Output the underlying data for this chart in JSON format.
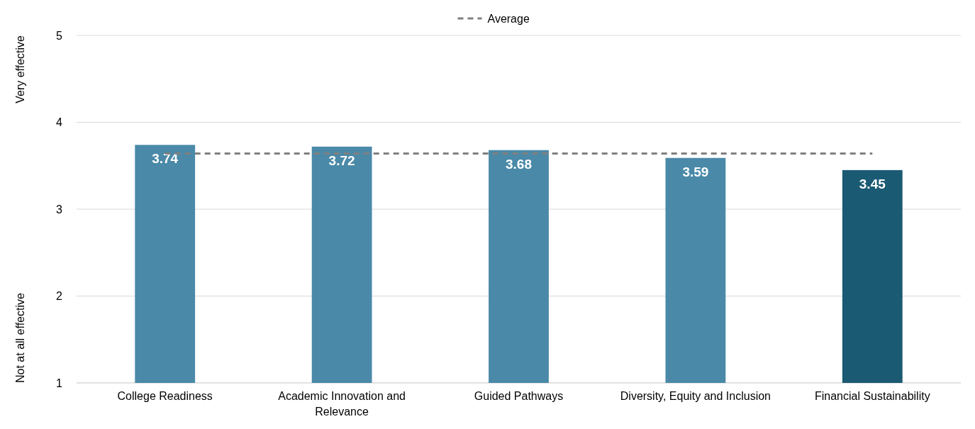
{
  "chart_data": {
    "type": "bar",
    "categories": [
      "College Readiness",
      "Academic Innovation and Relevance",
      "Guided Pathways",
      "Diversity, Equity and Inclusion",
      "Financial Sustainability"
    ],
    "series": [
      {
        "colors": [
          "#4a89a8",
          "#4a89a8",
          "#4a89a8",
          "#4a89a8",
          "#1b5a73"
        ],
        "values": [
          3.74,
          3.72,
          3.68,
          3.59,
          3.45
        ],
        "value_labels": [
          "3.74",
          "3.72",
          "3.68",
          "3.59",
          "3.45"
        ]
      },
      {
        "type": "line",
        "name": "Average",
        "color": "#808080",
        "values": [
          3.64,
          3.64,
          3.64,
          3.64,
          3.64
        ],
        "line_style": "dashed",
        "marker": "none"
      }
    ],
    "ylim": [
      1,
      5
    ],
    "yticks": [
      1,
      2,
      3,
      4,
      5
    ],
    "grid": "y",
    "legend": "top",
    "annotations": [
      "Very effective",
      "Not at all effective"
    ]
  }
}
